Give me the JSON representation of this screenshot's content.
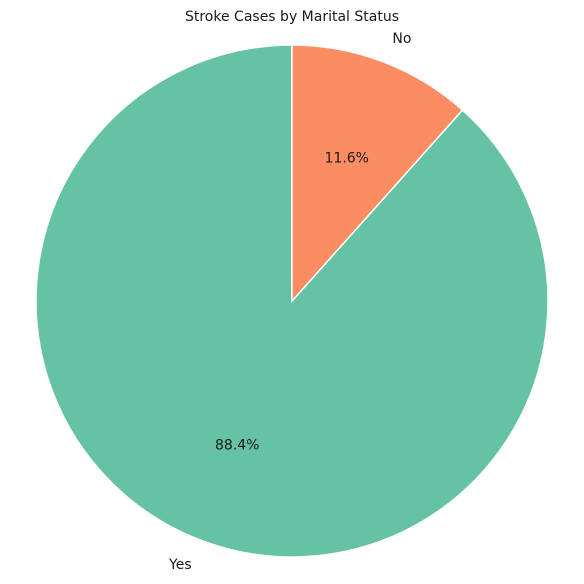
{
  "chart_data": {
    "type": "pie",
    "title": "Stroke Cases by Marital Status",
    "categories": [
      "Yes",
      "No"
    ],
    "values": [
      88.4,
      11.6
    ],
    "labels_pct": [
      "88.4%",
      "11.6%"
    ],
    "colors": [
      "#66c2a5",
      "#fc8d62"
    ],
    "start_angle": "90 degrees, counterclockwise"
  }
}
